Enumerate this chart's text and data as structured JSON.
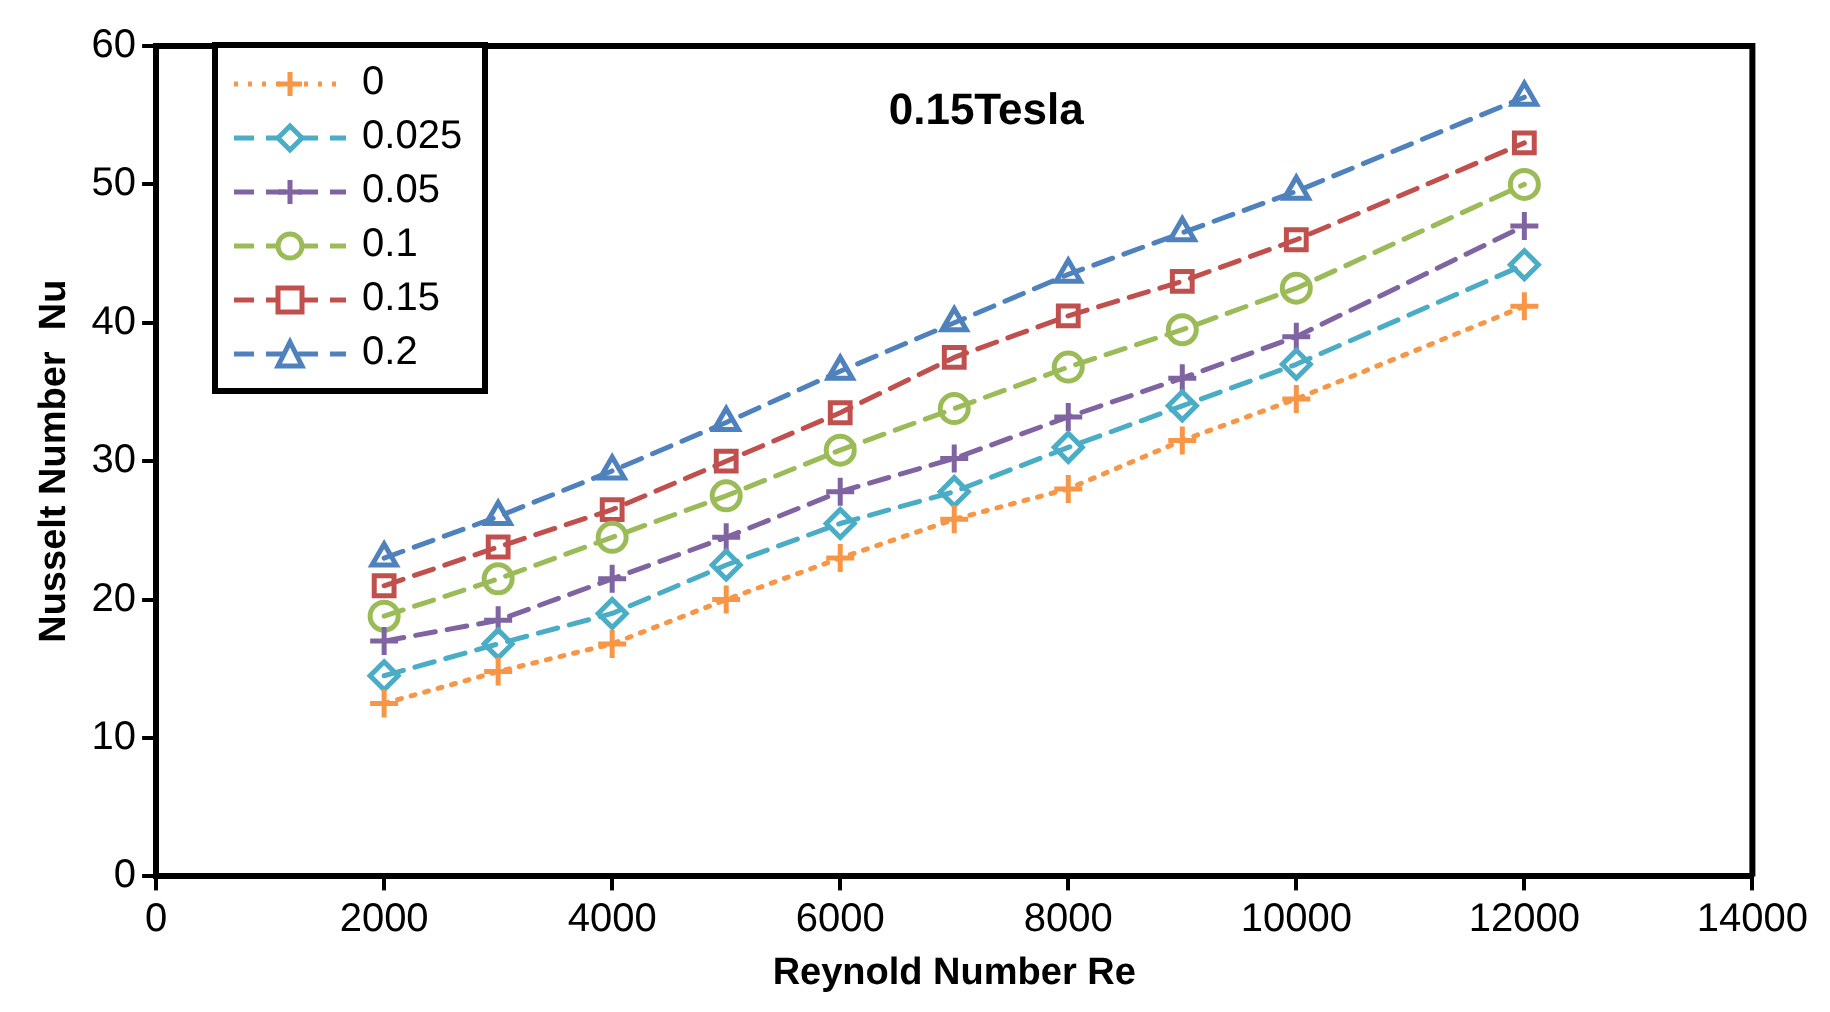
{
  "chart_data": {
    "type": "line",
    "title": "0.15Tesla",
    "xlabel": "Reynold Number Re",
    "ylabel": "Nusselt Number  Nu",
    "x": [
      2000,
      3000,
      4000,
      5000,
      6000,
      7000,
      8000,
      9000,
      10000,
      12000
    ],
    "xlim": [
      0,
      14000
    ],
    "xticks": [
      0,
      2000,
      4000,
      6000,
      8000,
      10000,
      12000,
      14000
    ],
    "ylim": [
      0,
      60
    ],
    "yticks": [
      0,
      10,
      20,
      30,
      40,
      50,
      60
    ],
    "grid": false,
    "legend": "top left",
    "series": [
      {
        "name": "0",
        "color": "#f79646",
        "marker": "cross",
        "line_style": "dotted",
        "values": [
          12.5,
          14.8,
          16.8,
          20,
          23,
          25.8,
          28,
          31.5,
          34.5,
          41.2
        ]
      },
      {
        "name": "0.025",
        "color": "#4bacc6",
        "marker": "diamond",
        "line_style": "dashed",
        "values": [
          14.5,
          16.8,
          19,
          22.5,
          25.5,
          27.8,
          31,
          34,
          37,
          44.2
        ]
      },
      {
        "name": "0.05",
        "color": "#8064a2",
        "marker": "cross",
        "line_style": "dashed",
        "values": [
          17,
          18.5,
          21.5,
          24.5,
          27.8,
          30.2,
          33.2,
          36,
          39,
          47
        ]
      },
      {
        "name": "0.1",
        "color": "#9bbb59",
        "marker": "circle",
        "line_style": "dashed",
        "values": [
          18.8,
          21.5,
          24.5,
          27.5,
          30.8,
          33.8,
          36.8,
          39.5,
          42.5,
          50
        ]
      },
      {
        "name": "0.15",
        "color": "#c0504d",
        "marker": "square",
        "line_style": "dashed",
        "values": [
          21,
          23.8,
          26.5,
          30,
          33.5,
          37.5,
          40.5,
          43,
          46,
          53
        ]
      },
      {
        "name": "0.2",
        "color": "#4f81bd",
        "marker": "triangle",
        "line_style": "dashed",
        "values": [
          23,
          26,
          29.3,
          32.8,
          36.5,
          40,
          43.5,
          46.5,
          49.5,
          56.3
        ]
      }
    ]
  }
}
